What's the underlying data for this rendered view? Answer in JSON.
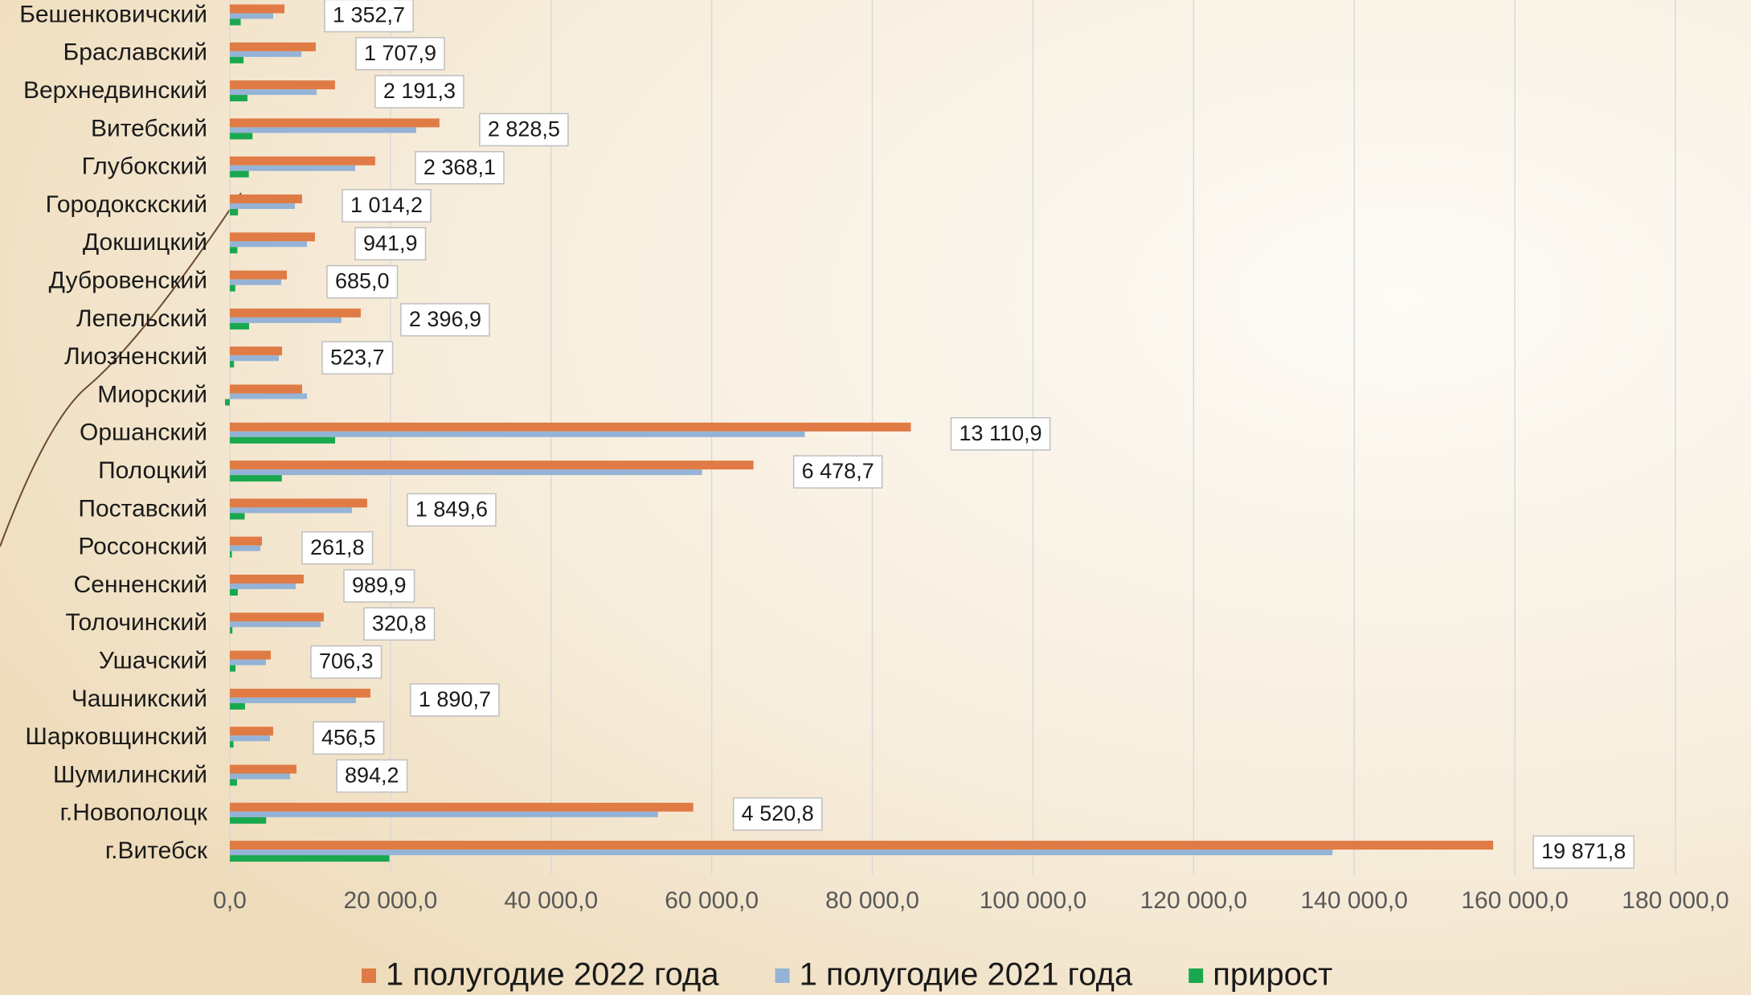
{
  "chart_data": {
    "type": "bar",
    "orientation": "horizontal",
    "categories": [
      "Бешенковичский",
      "Браславский",
      "Верхнедвинский",
      "Витебский",
      "Глубокский",
      "Городокскский",
      "Докшицкий",
      "Дубровенский",
      "Лепельский",
      "Лиозненский",
      "Миорский",
      "Оршанский",
      "Полоцкий",
      "Поставский",
      "Россонский",
      "Сенненский",
      "Толочинский",
      "Ушачский",
      "Чашникский",
      "Шарковщинский",
      "Шумилинский",
      "г.Новополоцк",
      "г.Витебск"
    ],
    "series": [
      {
        "name": "1 полугодие 2022 года",
        "color": "#e07b45",
        "values": [
          6800,
          10700,
          13100,
          26100,
          18100,
          9000,
          10600,
          7100,
          16300,
          6500,
          9000,
          84800,
          65200,
          17100,
          4000,
          9200,
          11700,
          5100,
          17500,
          5400,
          8300,
          57700,
          157300
        ]
      },
      {
        "name": "1 полугодие 2021 года",
        "color": "#94b3d6",
        "values": [
          5400,
          8900,
          10800,
          23200,
          15600,
          8100,
          9600,
          6400,
          13900,
          6100,
          9600,
          71600,
          58800,
          15200,
          3800,
          8200,
          11300,
          4500,
          15700,
          5000,
          7500,
          53300,
          137300
        ]
      },
      {
        "name": "прирост",
        "color": "#1aa84e",
        "values": [
          1352.7,
          1707.9,
          2191.3,
          2828.5,
          2368.1,
          1014.2,
          941.9,
          685.0,
          2396.9,
          523.7,
          -600,
          13110.9,
          6478.7,
          1849.6,
          261.8,
          989.9,
          320.8,
          706.3,
          1890.7,
          456.5,
          894.2,
          4520.8,
          19871.8
        ],
        "value_labels": [
          "1 352,7",
          "1 707,9",
          "2 191,3",
          "2 828,5",
          "2 368,1",
          "1 014,2",
          "941,9",
          "685,0",
          "2 396,9",
          "523,7",
          null,
          "13 110,9",
          "6 478,7",
          "1 849,6",
          "261,8",
          "989,9",
          "320,8",
          "706,3",
          "1 890,7",
          "456,5",
          "894,2",
          "4 520,8",
          "19 871,8"
        ]
      }
    ],
    "xlim": [
      0,
      180000
    ],
    "xticks": [
      {
        "value": 0,
        "label": "0,0"
      },
      {
        "value": 20000,
        "label": "20 000,0"
      },
      {
        "value": 40000,
        "label": "40 000,0"
      },
      {
        "value": 60000,
        "label": "60 000,0"
      },
      {
        "value": 80000,
        "label": "80 000,0"
      },
      {
        "value": 100000,
        "label": "100 000,0"
      },
      {
        "value": 120000,
        "label": "120 000,0"
      },
      {
        "value": 140000,
        "label": "140 000,0"
      },
      {
        "value": 160000,
        "label": "160 000,0"
      },
      {
        "value": 180000,
        "label": "180 000,0"
      }
    ],
    "grid": true,
    "legend": "bottom"
  }
}
